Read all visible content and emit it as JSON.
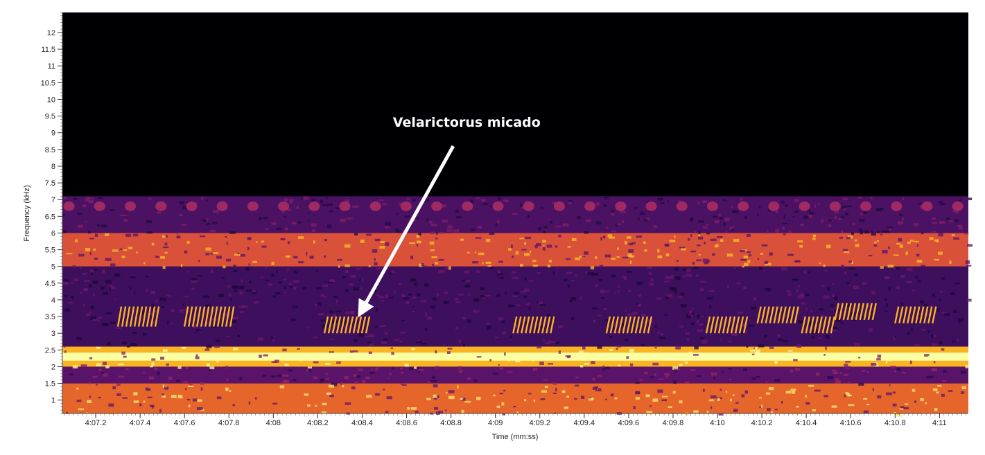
{
  "chart_data": {
    "type": "heatmap",
    "subtype": "spectrogram",
    "colormap": "inferno",
    "xlabel": "Time (mm:ss)",
    "ylabel": "Frequency (kHz)",
    "xlim": [
      247.05,
      251.13
    ],
    "ylim": [
      0.6,
      12.6
    ],
    "y_ticks": [
      {
        "value": 1,
        "label": "1"
      },
      {
        "value": 1.5,
        "label": "1.5"
      },
      {
        "value": 2,
        "label": "2"
      },
      {
        "value": 2.5,
        "label": "2.5"
      },
      {
        "value": 3,
        "label": "3"
      },
      {
        "value": 3.5,
        "label": "3.5"
      },
      {
        "value": 4,
        "label": "4"
      },
      {
        "value": 4.5,
        "label": "4.5"
      },
      {
        "value": 5,
        "label": "5"
      },
      {
        "value": 5.5,
        "label": "5.5"
      },
      {
        "value": 6,
        "label": "6"
      },
      {
        "value": 6.5,
        "label": "6.5"
      },
      {
        "value": 7,
        "label": "7"
      },
      {
        "value": 7.5,
        "label": "7.5"
      },
      {
        "value": 8,
        "label": "8"
      },
      {
        "value": 8.5,
        "label": "8.5"
      },
      {
        "value": 9,
        "label": "9"
      },
      {
        "value": 9.5,
        "label": "9.5"
      },
      {
        "value": 10,
        "label": "10"
      },
      {
        "value": 10.5,
        "label": "10.5"
      },
      {
        "value": 11,
        "label": "11"
      },
      {
        "value": 11.5,
        "label": "11.5"
      },
      {
        "value": 12,
        "label": "12"
      }
    ],
    "x_ticks": [
      {
        "value": 247.2,
        "label": "4:07.2"
      },
      {
        "value": 247.4,
        "label": "4:07.4"
      },
      {
        "value": 247.6,
        "label": "4:07.6"
      },
      {
        "value": 247.8,
        "label": "4:07.8"
      },
      {
        "value": 248.0,
        "label": "4:08"
      },
      {
        "value": 248.2,
        "label": "4:08.2"
      },
      {
        "value": 248.4,
        "label": "4:08.4"
      },
      {
        "value": 248.6,
        "label": "4:08.6"
      },
      {
        "value": 248.8,
        "label": "4:08.8"
      },
      {
        "value": 249.0,
        "label": "4:09"
      },
      {
        "value": 249.2,
        "label": "4:09.2"
      },
      {
        "value": 249.4,
        "label": "4:09.4"
      },
      {
        "value": 249.6,
        "label": "4:09.6"
      },
      {
        "value": 249.8,
        "label": "4:09.8"
      },
      {
        "value": 250.0,
        "label": "4:10"
      },
      {
        "value": 250.2,
        "label": "4:10.2"
      },
      {
        "value": 250.4,
        "label": "4:10.4"
      },
      {
        "value": 250.6,
        "label": "4:10.6"
      },
      {
        "value": 250.8,
        "label": "4:10.8"
      },
      {
        "value": 251.0,
        "label": "4:11"
      }
    ],
    "bands": [
      {
        "freq_low": 0.6,
        "freq_high": 1.5,
        "intensity": 0.85
      },
      {
        "freq_low": 1.5,
        "freq_high": 2.0,
        "intensity": 0.4
      },
      {
        "freq_low": 2.0,
        "freq_high": 2.6,
        "intensity": 1.0
      },
      {
        "freq_low": 2.6,
        "freq_high": 5.0,
        "intensity": 0.3
      },
      {
        "freq_low": 5.0,
        "freq_high": 6.0,
        "intensity": 0.8
      },
      {
        "freq_low": 6.0,
        "freq_high": 7.1,
        "intensity": 0.35
      }
    ],
    "call_bursts": [
      {
        "t_start": 247.3,
        "t_end": 247.47,
        "freq_low": 3.2,
        "freq_high": 3.8
      },
      {
        "t_start": 247.6,
        "t_end": 247.82,
        "freq_low": 3.2,
        "freq_high": 3.8
      },
      {
        "t_start": 248.23,
        "t_end": 248.42,
        "freq_low": 3.0,
        "freq_high": 3.5
      },
      {
        "t_start": 249.08,
        "t_end": 249.26,
        "freq_low": 3.0,
        "freq_high": 3.5
      },
      {
        "t_start": 249.5,
        "t_end": 249.7,
        "freq_low": 3.0,
        "freq_high": 3.5
      },
      {
        "t_start": 249.95,
        "t_end": 250.12,
        "freq_low": 3.0,
        "freq_high": 3.5
      },
      {
        "t_start": 250.18,
        "t_end": 250.35,
        "freq_low": 3.3,
        "freq_high": 3.8
      },
      {
        "t_start": 250.38,
        "t_end": 250.52,
        "freq_low": 3.0,
        "freq_high": 3.5
      },
      {
        "t_start": 250.53,
        "t_end": 250.7,
        "freq_low": 3.4,
        "freq_high": 3.9
      },
      {
        "t_start": 250.8,
        "t_end": 250.98,
        "freq_low": 3.3,
        "freq_high": 3.8
      }
    ],
    "annotation": {
      "text": "Velarictorus micado",
      "arrow_from": {
        "t": 248.81,
        "f": 8.6
      },
      "arrow_to": {
        "t": 248.4,
        "f": 3.7
      }
    }
  }
}
